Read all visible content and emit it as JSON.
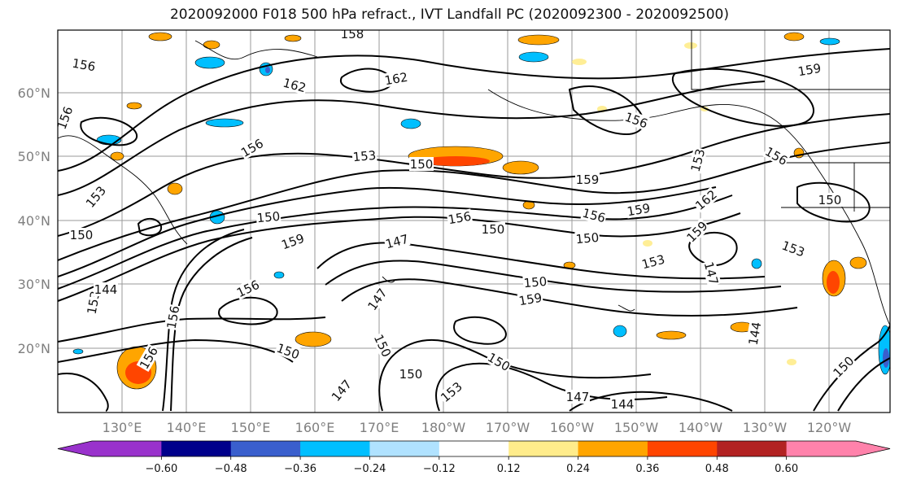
{
  "title": "2020092000 F018 500 hPa refract., IVT Landfall PC (2020092300 - 2020092500)",
  "lat_labels": [
    "60°N",
    "50°N",
    "40°N",
    "30°N",
    "20°N"
  ],
  "lon_labels": [
    "130°E",
    "140°E",
    "150°E",
    "160°E",
    "170°E",
    "180°W",
    "170°W",
    "160°W",
    "150°W",
    "140°W",
    "130°W",
    "120°W"
  ],
  "contour_labels": [
    "156",
    "156",
    "162",
    "162",
    "158",
    "156",
    "159",
    "156",
    "153",
    "150",
    "159",
    "153",
    "156",
    "153",
    "150",
    "159",
    "156",
    "150",
    "156",
    "159",
    "162",
    "159",
    "153",
    "150",
    "147",
    "150",
    "153",
    "156",
    "150",
    "159",
    "147",
    "150",
    "153",
    "156",
    "144",
    "147",
    "150",
    "156",
    "150",
    "150",
    "147",
    "144",
    "150",
    "150",
    "153",
    "147",
    "144"
  ],
  "colorbar": {
    "ticks": [
      "−0.60",
      "−0.48",
      "−0.36",
      "−0.24",
      "−0.12",
      "0.12",
      "0.24",
      "0.36",
      "0.48",
      "0.60"
    ],
    "colors": [
      "#9932cc",
      "#00008b",
      "#3a5fcd",
      "#00bfff",
      "#b0e2ff",
      "#ffffff",
      "#ffec8b",
      "#ffa500",
      "#ff4500",
      "#b22222",
      "#ff82ab"
    ]
  }
}
